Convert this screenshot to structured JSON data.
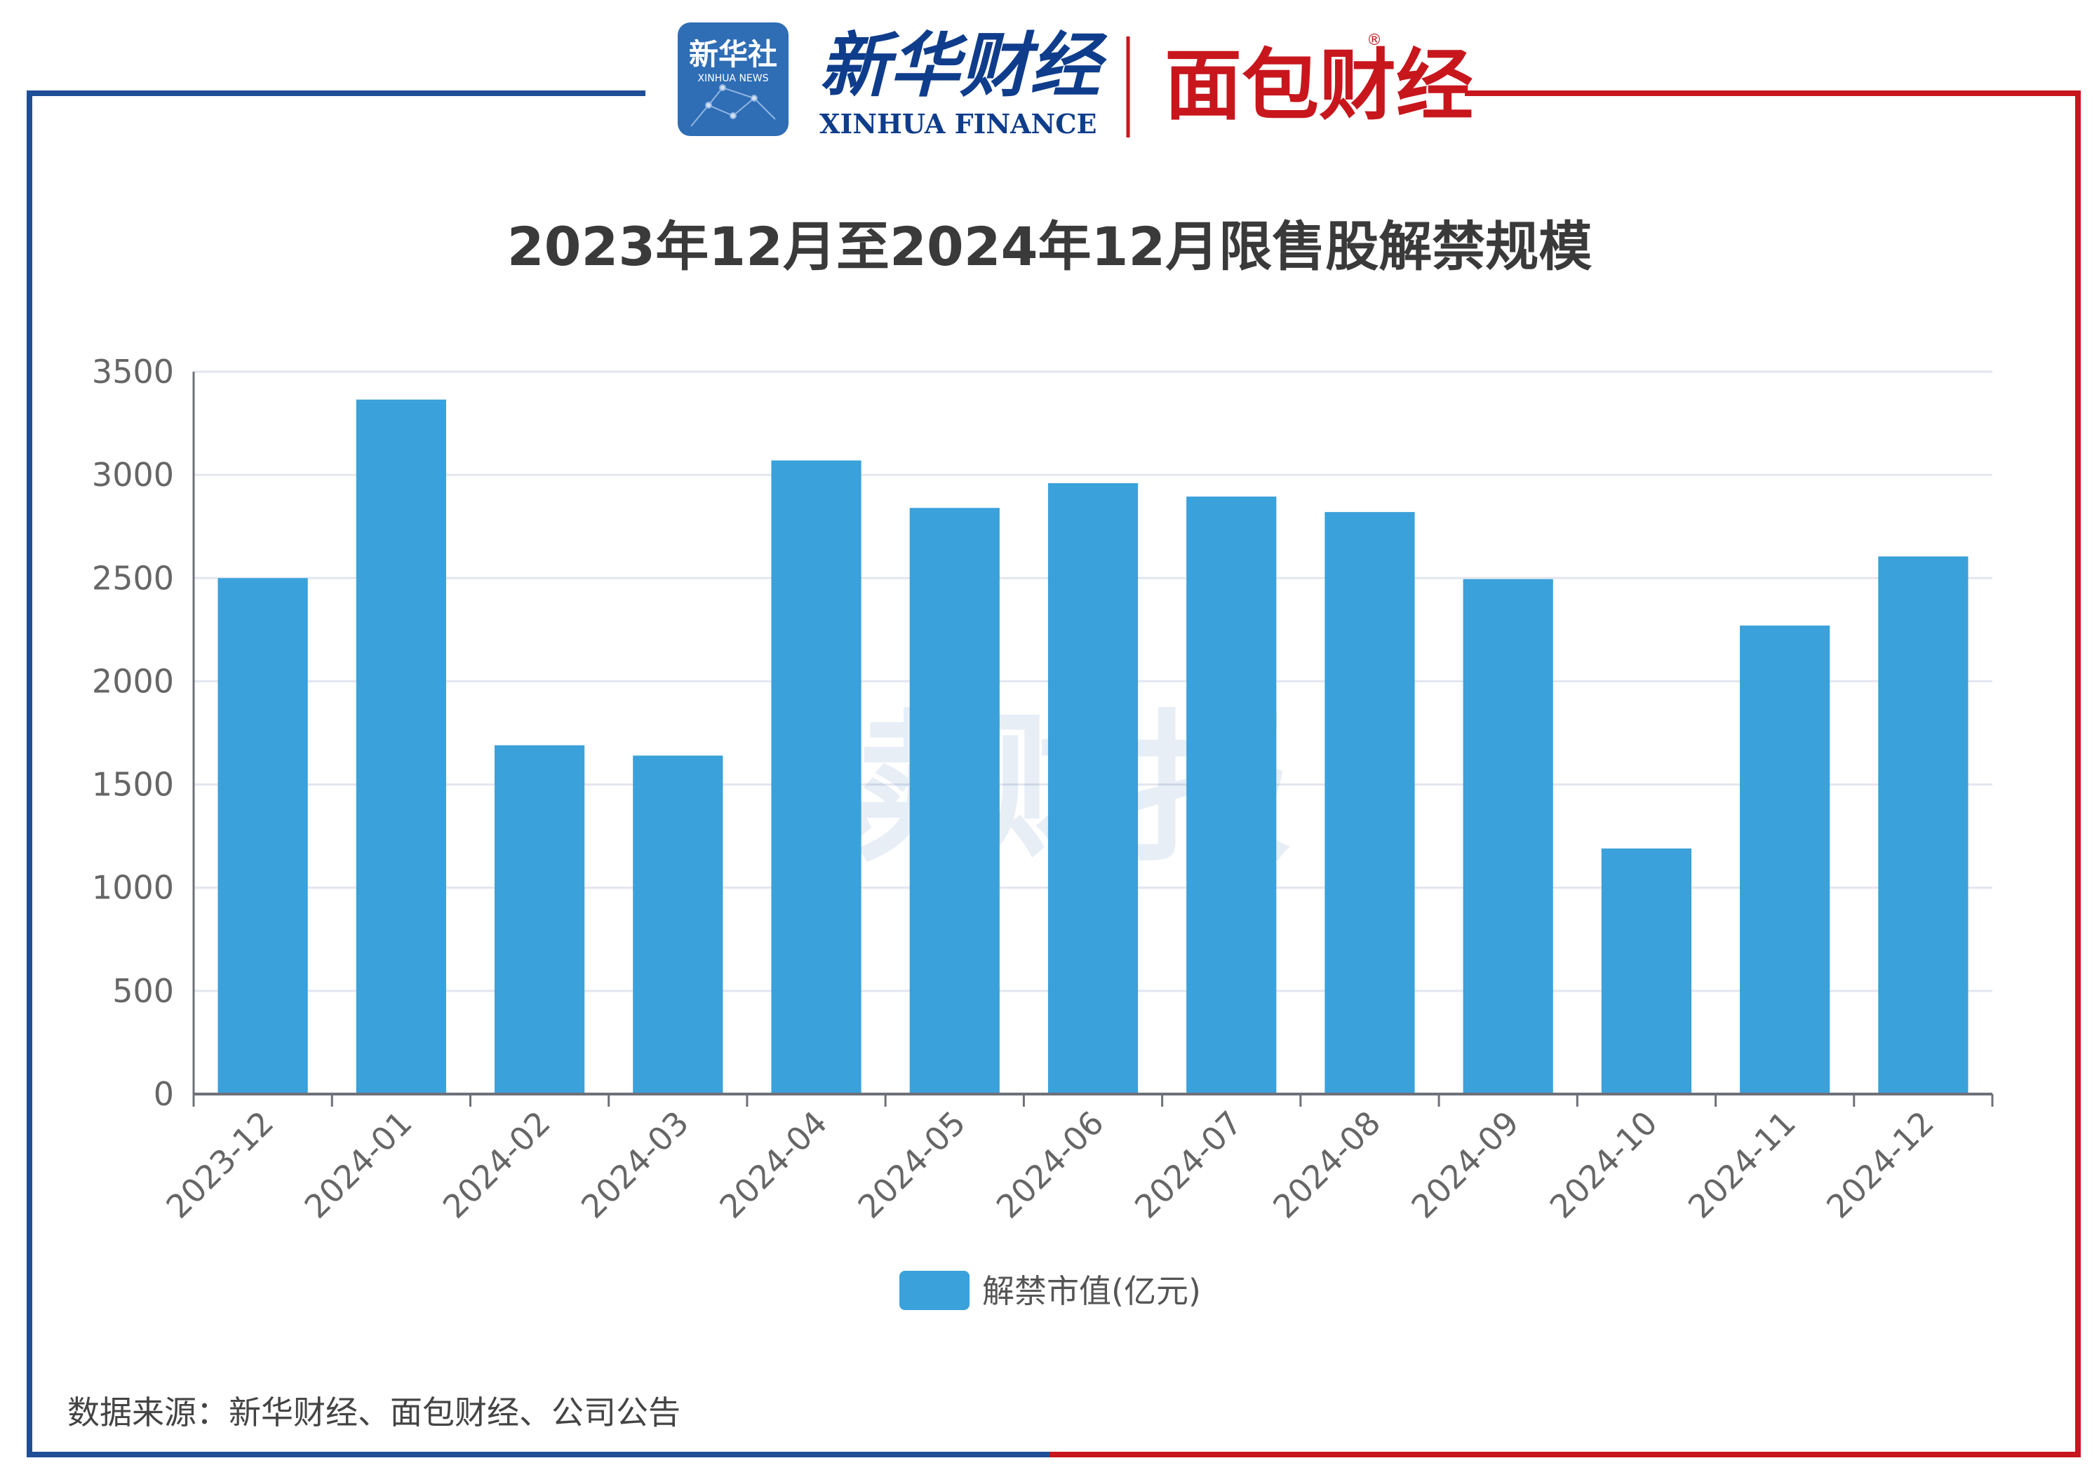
{
  "brand": {
    "badge_cn": "新华社",
    "badge_en": "XINHUA NEWS",
    "name_cn": "新华财经",
    "name_en": "XINHUA FINANCE",
    "partner": "面包财经",
    "registered": "®",
    "watermark": "读财报"
  },
  "colors": {
    "bar": "#3aa1da",
    "frame_blue": "#1f4e96",
    "frame_red": "#c8161d",
    "grid": "#e3e6ef",
    "axis": "#6e7079"
  },
  "source_note": "数据来源：新华财经、面包财经、公司公告",
  "chart_data": {
    "type": "bar",
    "title": "2023年12月至2024年12月限售股解禁规模",
    "categories": [
      "2023-12",
      "2024-01",
      "2024-02",
      "2024-03",
      "2024-04",
      "2024-05",
      "2024-06",
      "2024-07",
      "2024-08",
      "2024-09",
      "2024-10",
      "2024-11",
      "2024-12"
    ],
    "series": [
      {
        "name": "解禁市值(亿元)",
        "values": [
          2500,
          3365,
          1690,
          1640,
          3070,
          2840,
          2960,
          2895,
          2820,
          2495,
          1190,
          2270,
          2605
        ]
      }
    ],
    "ylim": [
      0,
      3500
    ],
    "yticks": [
      0,
      500,
      1000,
      1500,
      2000,
      2500,
      3000,
      3500
    ],
    "grid": true,
    "legend_position": "bottom-center"
  }
}
